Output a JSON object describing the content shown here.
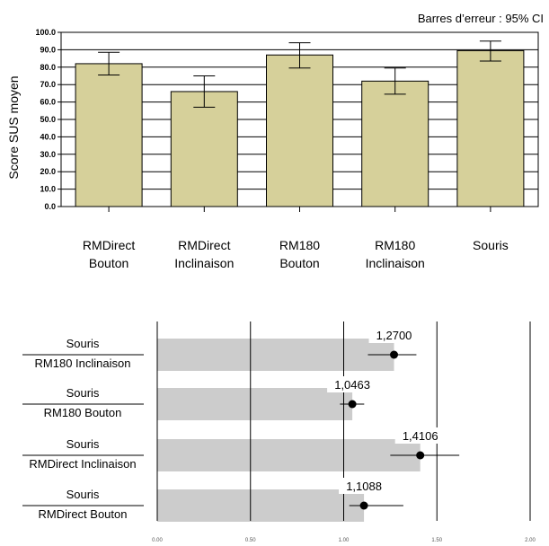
{
  "chart_data": [
    {
      "type": "bar",
      "note": "Barres d’erreur : 95% CI",
      "ylabel": "Score SUS moyen",
      "ylim": [
        0,
        100
      ],
      "ytick_labels": [
        "0.0",
        "10.0",
        "20.0",
        "30.0",
        "40.0",
        "50.0",
        "60.0",
        "70.0",
        "80.0",
        "90.0",
        "100.0"
      ],
      "categories": [
        [
          "RMDirect",
          "Bouton"
        ],
        [
          "RMDirect",
          "Inclinaison"
        ],
        [
          "RM180",
          "Bouton"
        ],
        [
          "RM180",
          "Inclinaison"
        ],
        [
          "Souris"
        ]
      ],
      "values": [
        82,
        66,
        87,
        72,
        89.5
      ],
      "ci": [
        [
          75.5,
          88.5
        ],
        [
          57,
          75
        ],
        [
          79.5,
          94
        ],
        [
          64.5,
          79.5
        ],
        [
          83.5,
          95
        ]
      ],
      "grid": true,
      "bar_color": "#d6d09a"
    },
    {
      "type": "bar",
      "orientation": "horizontal",
      "categories": [
        [
          "Souris",
          "RM180 Inclinaison"
        ],
        [
          "Souris",
          "RM180 Bouton"
        ],
        [
          "Souris",
          "RMDirect Inclinaison"
        ],
        [
          "Souris",
          "RMDirect Bouton"
        ]
      ],
      "values": [
        1.27,
        1.0463,
        1.4106,
        1.1088
      ],
      "value_labels": [
        "1,2700",
        "1,0463",
        "1,4106",
        "1,1088"
      ],
      "ci": [
        [
          1.13,
          1.39
        ],
        [
          0.98,
          1.11
        ],
        [
          1.25,
          1.62
        ],
        [
          1.03,
          1.32
        ]
      ],
      "xlim": [
        0,
        2
      ],
      "xtick_labels": [
        "0.00",
        "0.50",
        "1.00",
        "1.50",
        "2.00"
      ],
      "grid": true,
      "bar_color": "#cccccc"
    }
  ]
}
